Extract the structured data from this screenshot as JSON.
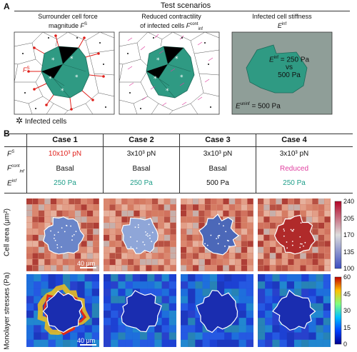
{
  "panelA": {
    "letter": "A",
    "header": "Test scenarios",
    "col1": {
      "line1": "Surrounder cell force",
      "line2": "magnitude",
      "sym": "F",
      "sup": "S"
    },
    "col2": {
      "line1": "Reduced contractility",
      "line2": "of infected cells",
      "sym": "F",
      "sup": "cont",
      "sub": "inf"
    },
    "col3": {
      "line1": "Infected cell stiffness",
      "sym": "E",
      "sup": "inf"
    },
    "box1_label": {
      "sym": "F",
      "sup": "S"
    },
    "box3": {
      "line1_sym": "E",
      "line1_sup": "inf",
      "line1_rest": " = 250 Pa",
      "line2": "vs",
      "line3": "500 Pa",
      "bottom_sym": "E",
      "bottom_sup": "uninf",
      "bottom_rest": " = 500 Pa"
    },
    "legend_infected": "Infected cells"
  },
  "panelB": {
    "letter": "B",
    "columns": [
      "Case 1",
      "Case 2",
      "Case 3",
      "Case 4"
    ],
    "rows": [
      {
        "sym": "F",
        "sup": "S",
        "sub": "",
        "values": [
          "10x10³ pN",
          "3x10³ pN",
          "3x10³ pN",
          "3x10³ pN"
        ]
      },
      {
        "sym": "F",
        "sup": "cont",
        "sub": "inf",
        "values": [
          "Basal",
          "Basal",
          "Basal",
          "Reduced"
        ]
      },
      {
        "sym": "E",
        "sup": "inf",
        "sub": "",
        "values": [
          "250 Pa",
          "250 Pa",
          "500 Pa",
          "250 Pa"
        ]
      }
    ],
    "value_colors": [
      [
        "#e0201b",
        "#111111",
        "#111111",
        "#111111"
      ],
      [
        "#111111",
        "#111111",
        "#111111",
        "#e040a0"
      ],
      [
        "#1f9e89",
        "#1f9e89",
        "#111111",
        "#1f9e89"
      ]
    ],
    "row_label_area": "Cell area (μm²)",
    "row_label_stress": "Monolayer stresses (Pa)",
    "scalebar": "40 μm",
    "area_colorbar_ticks": [
      "240",
      "205",
      "170",
      "135",
      "100"
    ],
    "stress_colorbar_ticks": [
      "60",
      "45",
      "30",
      "15",
      "0"
    ]
  },
  "colors": {
    "teal": "#2f9a83",
    "red": "#e0201b",
    "magenta": "#e040a0",
    "gray_box": "#8f9e98"
  }
}
